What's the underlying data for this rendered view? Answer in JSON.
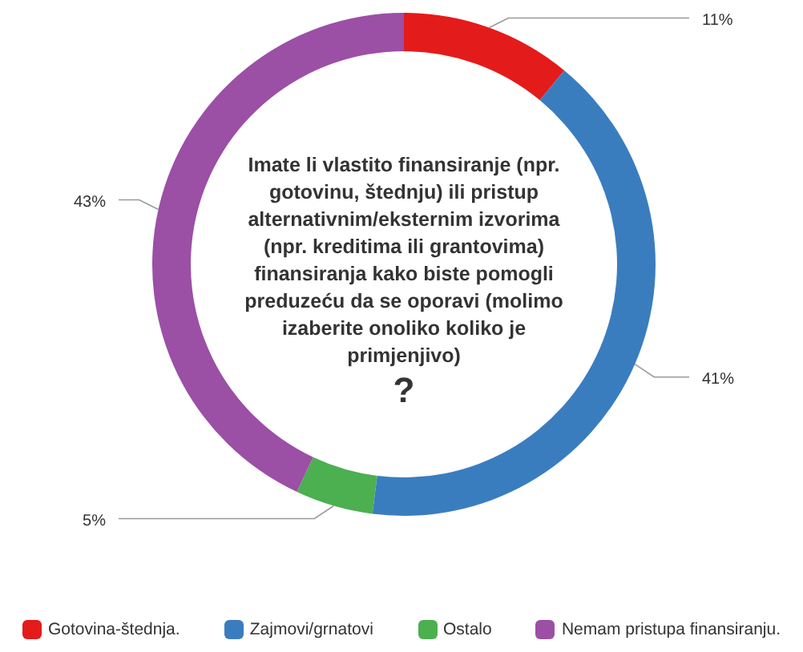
{
  "chart_data": {
    "type": "donut",
    "title": "Imate li vlastito finansiranje (npr. gotovinu, štednju) ili pristup alternativnim/eksternim izvorima (npr. kreditima ili grantovima) finansiranja kako biste pomogli preduzeću da se oporavi (molimo izaberite onoliko koliko je primjenjivo)",
    "subtitle": "?",
    "categories": [
      "Gotovina-štednja.",
      "Zajmovi/grnatovi",
      "Ostalo",
      "Nemam pristupa finansiranju."
    ],
    "values": [
      11,
      41,
      5,
      43
    ],
    "colors": [
      "#e41b1b",
      "#3a7dbf",
      "#4caf50",
      "#9b4fa5"
    ],
    "value_labels": [
      "11%",
      "41%",
      "5%",
      "43%"
    ],
    "legend": "bottom"
  }
}
